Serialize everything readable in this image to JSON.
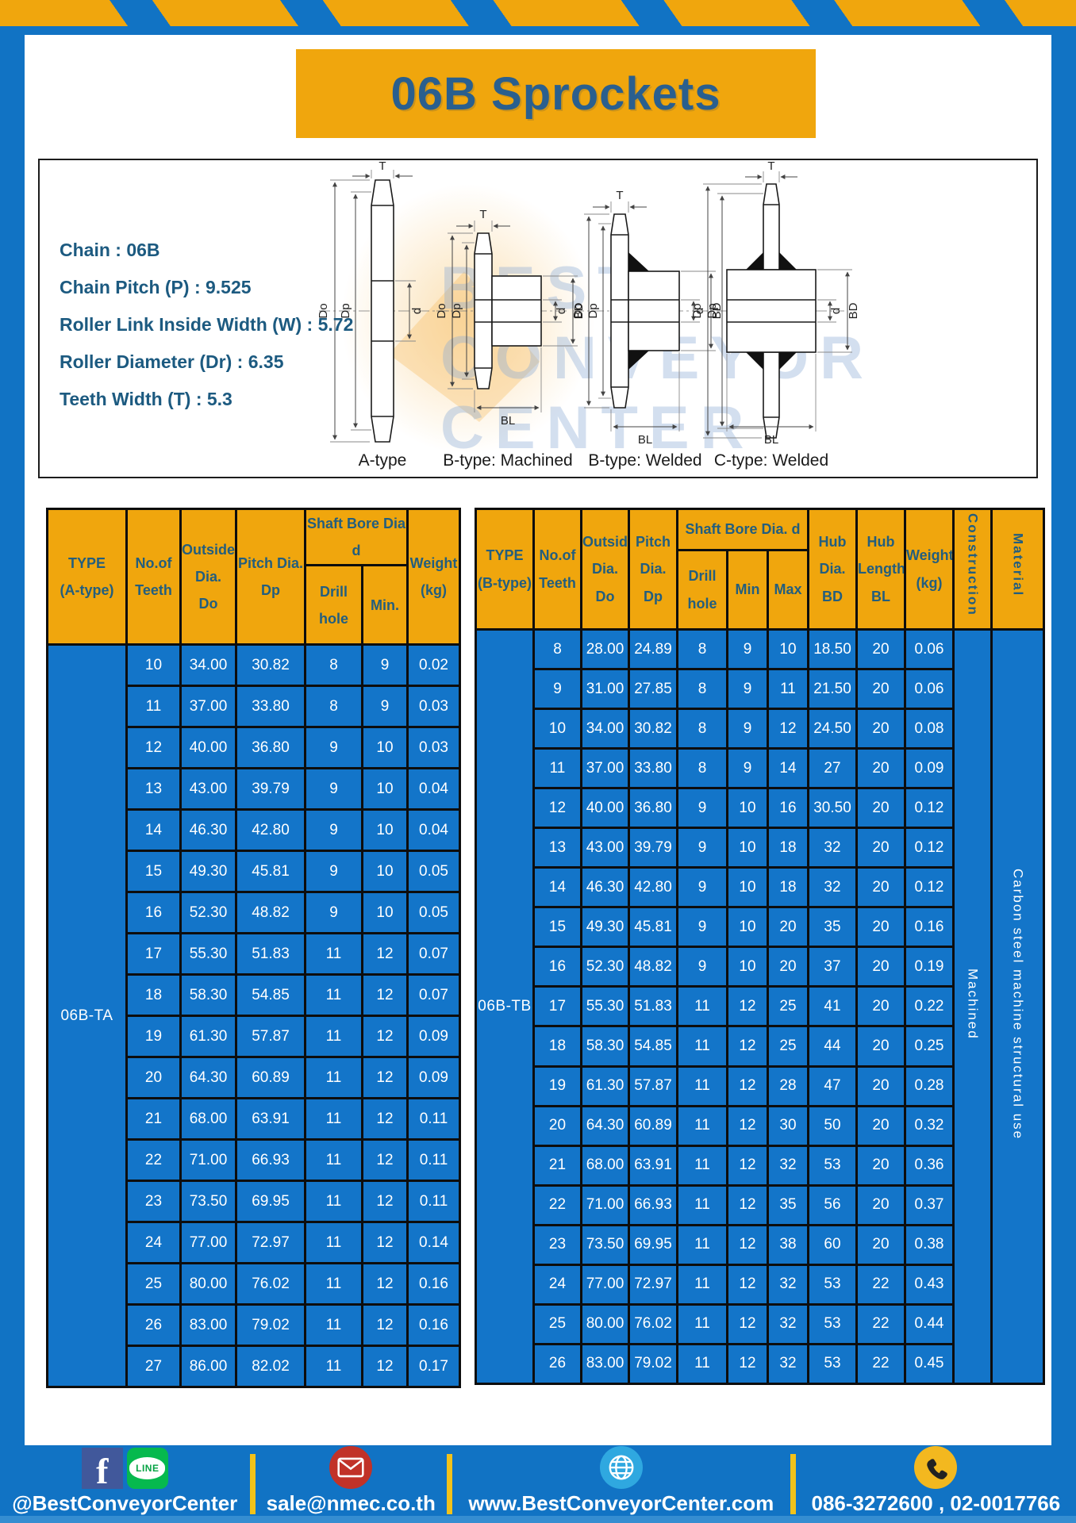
{
  "page": {
    "title": "06B Sprockets"
  },
  "specs": {
    "lines": [
      "Chain  : 06B",
      "Chain Pitch (P)  :  9.525",
      "Roller Link Inside Width (W)  :  5.72",
      "Roller Diameter (Dr)  : 6.35",
      "Teeth Width (T)  :  5.3"
    ]
  },
  "diagram": {
    "type_labels": [
      "A-type",
      "B-type: Machined",
      "B-type: Welded",
      "C-type: Welded"
    ],
    "dims": {
      "t": "T",
      "do": "Do",
      "dp": "Dp",
      "d": "d",
      "bd": "BD",
      "bl": "BL"
    },
    "watermark_lines": [
      "BEST",
      "CONVEYOR",
      "CENTER"
    ]
  },
  "table_a": {
    "type_label": "06B-TA",
    "headers": {
      "type": "TYPE\n(A-type)",
      "teeth": "No.of\nTeeth",
      "outside": "Outside\nDia.\nDo",
      "pitch": "Pitch Dia.\nDp",
      "shaft": "Shaft Bore Dia d",
      "drill": "Drill hole",
      "min": "Min.",
      "weight": "Weight\n(kg)"
    },
    "rows": [
      [
        "10",
        "34.00",
        "30.82",
        "8",
        "9",
        "0.02"
      ],
      [
        "11",
        "37.00",
        "33.80",
        "8",
        "9",
        "0.03"
      ],
      [
        "12",
        "40.00",
        "36.80",
        "9",
        "10",
        "0.03"
      ],
      [
        "13",
        "43.00",
        "39.79",
        "9",
        "10",
        "0.04"
      ],
      [
        "14",
        "46.30",
        "42.80",
        "9",
        "10",
        "0.04"
      ],
      [
        "15",
        "49.30",
        "45.81",
        "9",
        "10",
        "0.05"
      ],
      [
        "16",
        "52.30",
        "48.82",
        "9",
        "10",
        "0.05"
      ],
      [
        "17",
        "55.30",
        "51.83",
        "11",
        "12",
        "0.07"
      ],
      [
        "18",
        "58.30",
        "54.85",
        "11",
        "12",
        "0.07"
      ],
      [
        "19",
        "61.30",
        "57.87",
        "11",
        "12",
        "0.09"
      ],
      [
        "20",
        "64.30",
        "60.89",
        "11",
        "12",
        "0.09"
      ],
      [
        "21",
        "68.00",
        "63.91",
        "11",
        "12",
        "0.11"
      ],
      [
        "22",
        "71.00",
        "66.93",
        "11",
        "12",
        "0.11"
      ],
      [
        "23",
        "73.50",
        "69.95",
        "11",
        "12",
        "0.11"
      ],
      [
        "24",
        "77.00",
        "72.97",
        "11",
        "12",
        "0.14"
      ],
      [
        "25",
        "80.00",
        "76.02",
        "11",
        "12",
        "0.16"
      ],
      [
        "26",
        "83.00",
        "79.02",
        "11",
        "12",
        "0.16"
      ],
      [
        "27",
        "86.00",
        "82.02",
        "11",
        "12",
        "0.17"
      ]
    ]
  },
  "table_b": {
    "type_label": "06B-TB",
    "construction": "Machined",
    "material": "Carbon steel machine structural use",
    "headers": {
      "type": "TYPE\n(B-type)",
      "teeth": "No.of\nTeeth",
      "outside": "Outside\nDia.\nDo",
      "pitch": "Pitch\nDia.\nDp",
      "shaft": "Shaft Bore Dia. d",
      "drill": "Drill hole",
      "min": "Min",
      "max": "Max",
      "hub_dia": "Hub\nDia.\nBD",
      "hub_len": "Hub\nLength\nBL",
      "weight": "Weight\n(kg)",
      "construction": "Construction",
      "material": "Material"
    },
    "rows": [
      [
        "8",
        "28.00",
        "24.89",
        "8",
        "9",
        "10",
        "18.50",
        "20",
        "0.06"
      ],
      [
        "9",
        "31.00",
        "27.85",
        "8",
        "9",
        "11",
        "21.50",
        "20",
        "0.06"
      ],
      [
        "10",
        "34.00",
        "30.82",
        "8",
        "9",
        "12",
        "24.50",
        "20",
        "0.08"
      ],
      [
        "11",
        "37.00",
        "33.80",
        "8",
        "9",
        "14",
        "27",
        "20",
        "0.09"
      ],
      [
        "12",
        "40.00",
        "36.80",
        "9",
        "10",
        "16",
        "30.50",
        "20",
        "0.12"
      ],
      [
        "13",
        "43.00",
        "39.79",
        "9",
        "10",
        "18",
        "32",
        "20",
        "0.12"
      ],
      [
        "14",
        "46.30",
        "42.80",
        "9",
        "10",
        "18",
        "32",
        "20",
        "0.12"
      ],
      [
        "15",
        "49.30",
        "45.81",
        "9",
        "10",
        "20",
        "35",
        "20",
        "0.16"
      ],
      [
        "16",
        "52.30",
        "48.82",
        "9",
        "10",
        "20",
        "37",
        "20",
        "0.19"
      ],
      [
        "17",
        "55.30",
        "51.83",
        "11",
        "12",
        "25",
        "41",
        "20",
        "0.22"
      ],
      [
        "18",
        "58.30",
        "54.85",
        "11",
        "12",
        "25",
        "44",
        "20",
        "0.25"
      ],
      [
        "19",
        "61.30",
        "57.87",
        "11",
        "12",
        "28",
        "47",
        "20",
        "0.28"
      ],
      [
        "20",
        "64.30",
        "60.89",
        "11",
        "12",
        "30",
        "50",
        "20",
        "0.32"
      ],
      [
        "21",
        "68.00",
        "63.91",
        "11",
        "12",
        "32",
        "53",
        "20",
        "0.36"
      ],
      [
        "22",
        "71.00",
        "66.93",
        "11",
        "12",
        "35",
        "56",
        "20",
        "0.37"
      ],
      [
        "23",
        "73.50",
        "69.95",
        "11",
        "12",
        "38",
        "60",
        "20",
        "0.38"
      ],
      [
        "24",
        "77.00",
        "72.97",
        "11",
        "12",
        "32",
        "53",
        "22",
        "0.43"
      ],
      [
        "25",
        "80.00",
        "76.02",
        "11",
        "12",
        "32",
        "53",
        "22",
        "0.44"
      ],
      [
        "26",
        "83.00",
        "79.02",
        "11",
        "12",
        "32",
        "53",
        "22",
        "0.45"
      ]
    ]
  },
  "footer": {
    "facebook_letter": "f",
    "line_label": "LINE",
    "social_label": "@BestConveyorCenter",
    "email": "sale@nmec.co.th",
    "website": "www.BestConveyorCenter.com",
    "phone": "086-3272600 , 02-0017766"
  },
  "colors": {
    "frame_blue": "#1173c4",
    "cell_blue": "#1375c9",
    "gold": "#f0a60d",
    "dark_blue_text": "#235e8e",
    "footer_divider": "#f2c21a",
    "facebook_blue": "#41589b",
    "line_green": "#06b94e",
    "email_red": "#c13228",
    "globe_blue": "#2fa8e0",
    "phone_yellow": "#f3b81f"
  }
}
